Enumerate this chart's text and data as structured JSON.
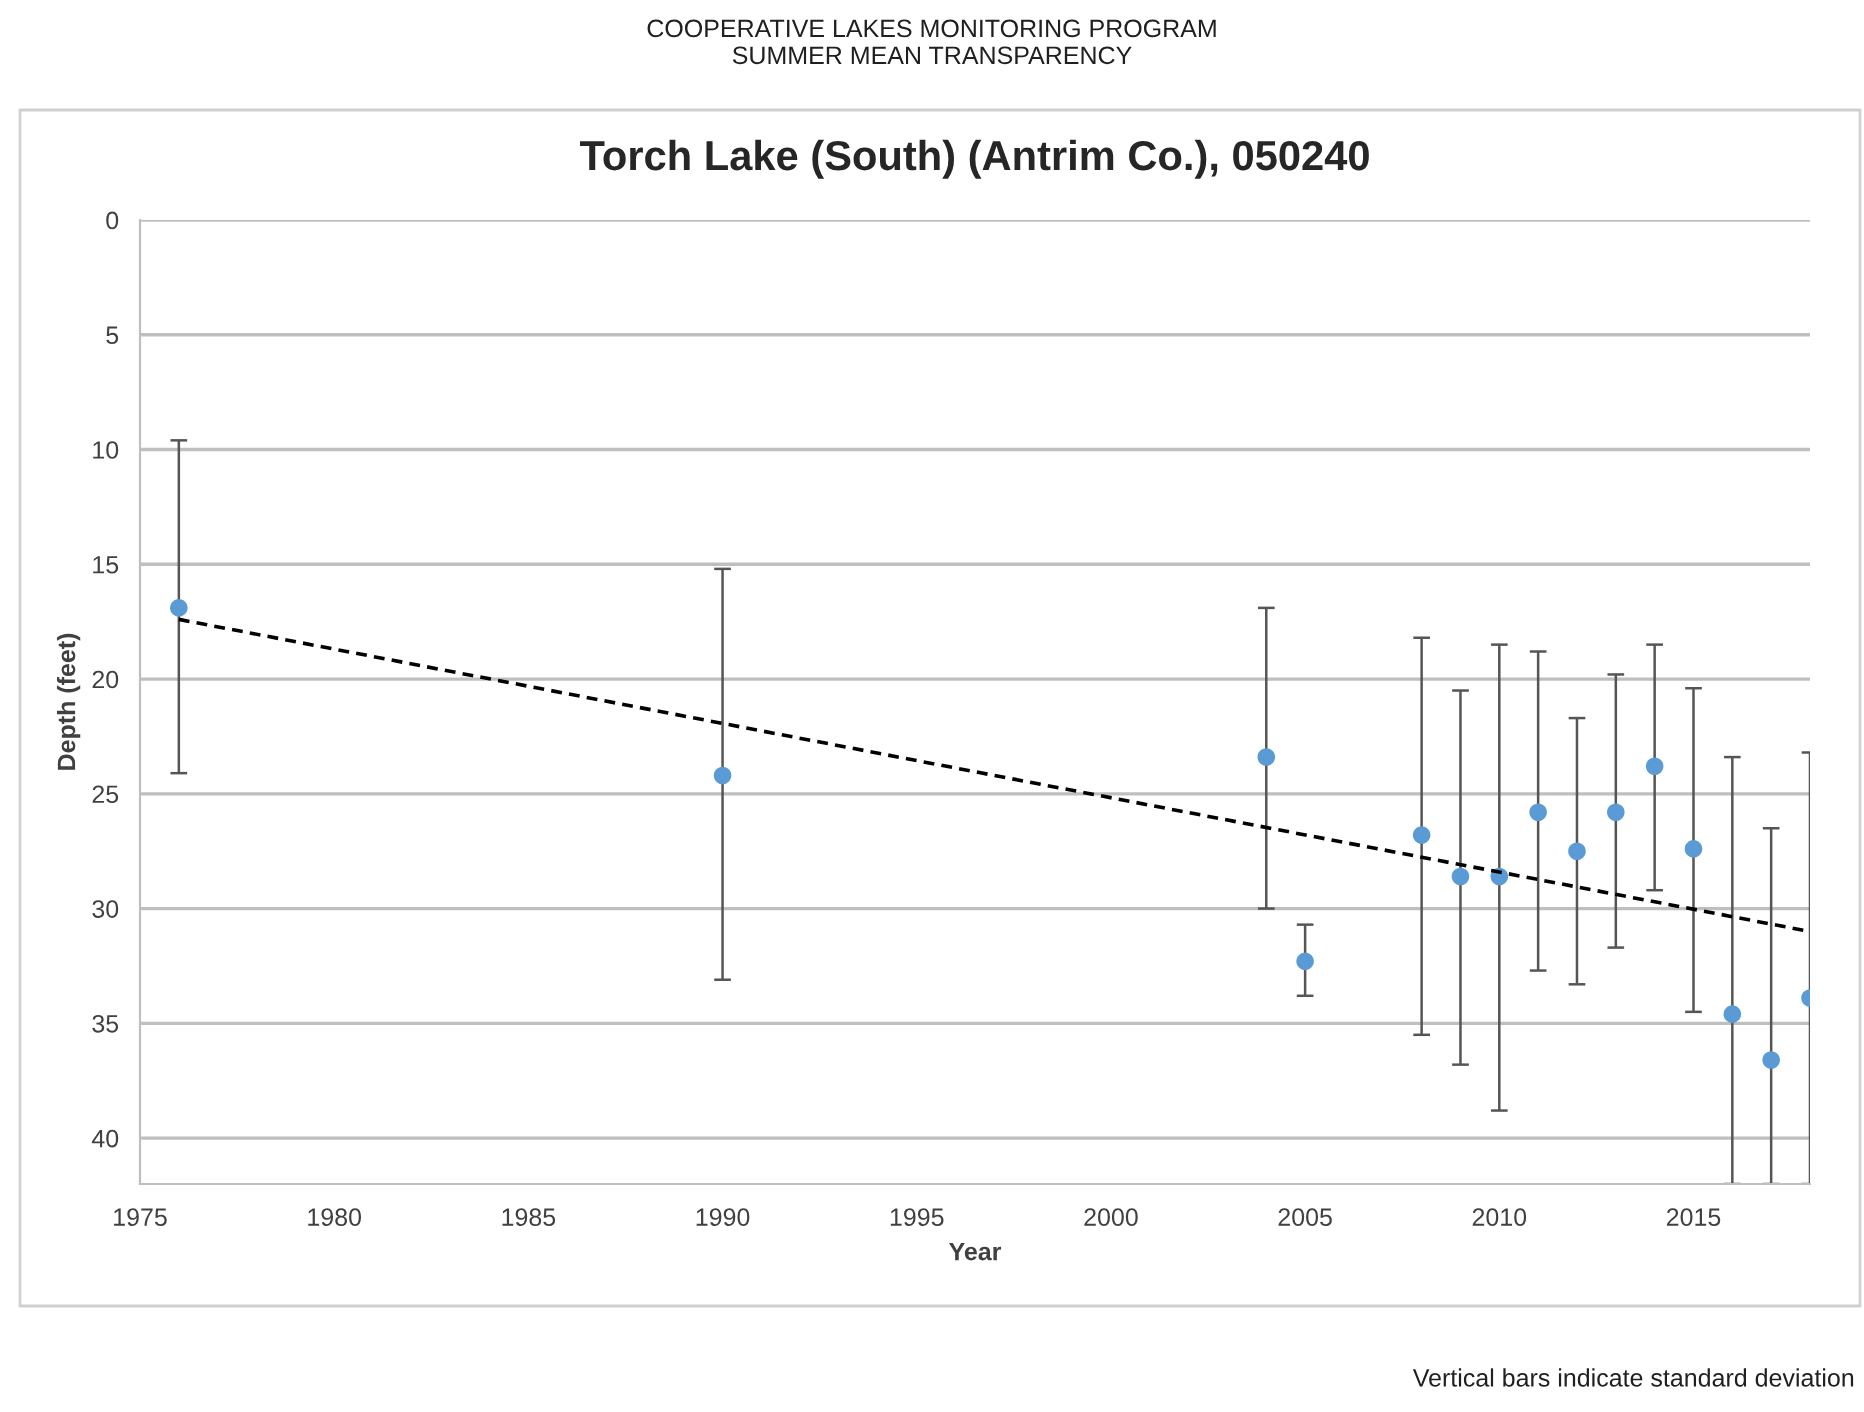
{
  "chart_data": {
    "type": "scatter",
    "title": "Torch Lake (South) (Antrim Co.), 050240",
    "subtitle": "COOPERATIVE LAKES MONITORING PROGRAM\nSUMMER MEAN TRANSPARENCY",
    "xlabel": "Year",
    "ylabel": "Depth (feet)",
    "annotations": [
      "Vertical bars indicate standard deviation"
    ],
    "xlim": [
      1975,
      2018
    ],
    "xticks": [
      1975,
      1980,
      1985,
      1990,
      1995,
      2000,
      2005,
      2010,
      2015
    ],
    "ylim": [
      42,
      0
    ],
    "yticks": [
      0,
      5,
      10,
      15,
      20,
      25,
      30,
      35,
      40
    ],
    "grid": "y",
    "marker": "circle",
    "series": [
      {
        "color": "#5b9bd5",
        "x": [
          1976,
          1990,
          2004,
          2005,
          2008,
          2009,
          2010,
          2011,
          2012,
          2013,
          2014,
          2015,
          2016,
          2017,
          2018
        ],
        "values": [
          16.9,
          24.2,
          23.4,
          32.3,
          26.8,
          28.6,
          28.6,
          25.8,
          27.5,
          25.8,
          23.8,
          27.4,
          34.6,
          36.6,
          33.9
        ],
        "errors": [
          [
            9.6,
            24.1
          ],
          [
            15.2,
            33.1
          ],
          [
            16.9,
            30.0
          ],
          [
            30.7,
            33.8
          ],
          [
            18.2,
            35.5
          ],
          [
            20.5,
            36.8
          ],
          [
            18.5,
            38.8
          ],
          [
            18.8,
            32.7
          ],
          [
            21.7,
            33.3
          ],
          [
            19.8,
            31.7
          ],
          [
            18.5,
            29.2
          ],
          [
            20.4,
            34.5
          ],
          [
            23.4,
            42
          ],
          [
            26.5,
            42
          ],
          [
            23.2,
            42
          ]
        ]
      },
      {
        "type": "line",
        "color": "#000000",
        "line_style": "dashed",
        "marker": "none",
        "x": [
          1976,
          2018
        ],
        "values": [
          17.4,
          31.0
        ]
      }
    ]
  }
}
